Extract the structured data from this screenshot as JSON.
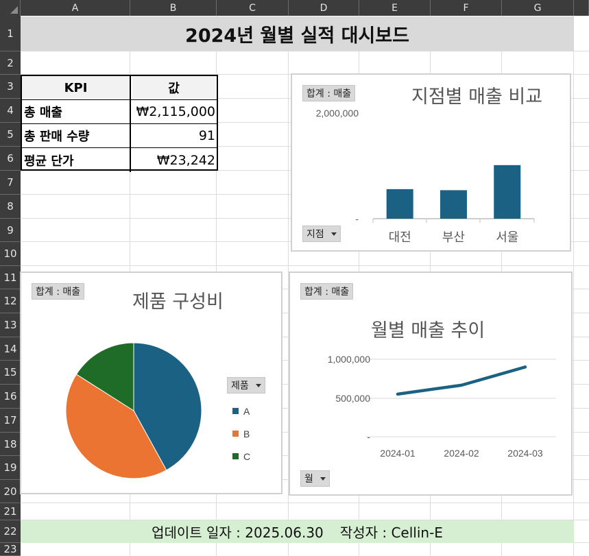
{
  "sheet": {
    "columns": [
      "A",
      "B",
      "C",
      "D",
      "E",
      "F",
      "G"
    ],
    "rows": [
      "1",
      "2",
      "3",
      "4",
      "5",
      "6",
      "7",
      "8",
      "9",
      "10",
      "11",
      "12",
      "13",
      "14",
      "15",
      "16",
      "17",
      "18",
      "19",
      "20",
      "21",
      "22",
      "23"
    ]
  },
  "dashboard_title": "2024년 월별 실적 대시보드",
  "kpi_table": {
    "header": {
      "label": "KPI",
      "value": "값"
    },
    "rows": [
      {
        "label": "총 매출",
        "value": "₩2,115,000"
      },
      {
        "label": "총 판매 수량",
        "value": "91"
      },
      {
        "label": "평균 단가",
        "value": "₩23,242"
      }
    ]
  },
  "branch_chart": {
    "value_field_button": "합계 : 매출",
    "title": "지점별 매출 비교",
    "filter_button": "지점",
    "y_ticks": [
      "2,000,000",
      "-"
    ]
  },
  "product_chart": {
    "value_field_button": "합계 : 매출",
    "title": "제품 구성비",
    "legend_button": "제품",
    "legend": [
      {
        "label": "A",
        "color": "#1a6184"
      },
      {
        "label": "B",
        "color": "#eb7433"
      },
      {
        "label": "C",
        "color": "#1e6c28"
      }
    ]
  },
  "monthly_chart": {
    "value_field_button": "합계 : 매출",
    "title": "월별 매출 추이",
    "filter_button": "월",
    "y_ticks": [
      "1,000,000",
      "500,000",
      "-"
    ]
  },
  "chart_data": [
    {
      "type": "bar",
      "categories": [
        "대전",
        "부산",
        "서울"
      ],
      "values": [
        560000,
        540000,
        1015000
      ],
      "ylim": [
        0,
        2000000
      ],
      "color": "#1a6184"
    },
    {
      "type": "pie",
      "categories": [
        "A",
        "B",
        "C"
      ],
      "values": [
        0.42,
        0.42,
        0.16
      ],
      "colors": [
        "#1a6184",
        "#eb7433",
        "#1e6c28"
      ],
      "legend_position": "right"
    },
    {
      "type": "line",
      "x": [
        "2024-01",
        "2024-02",
        "2024-03"
      ],
      "values": [
        550000,
        665000,
        900000
      ],
      "ylim": [
        0,
        1000000
      ],
      "color": "#1a6184"
    }
  ],
  "footer": {
    "updated": "업데이트 일자 : 2025.06.30",
    "author": "작성자 : Cellin-E"
  }
}
